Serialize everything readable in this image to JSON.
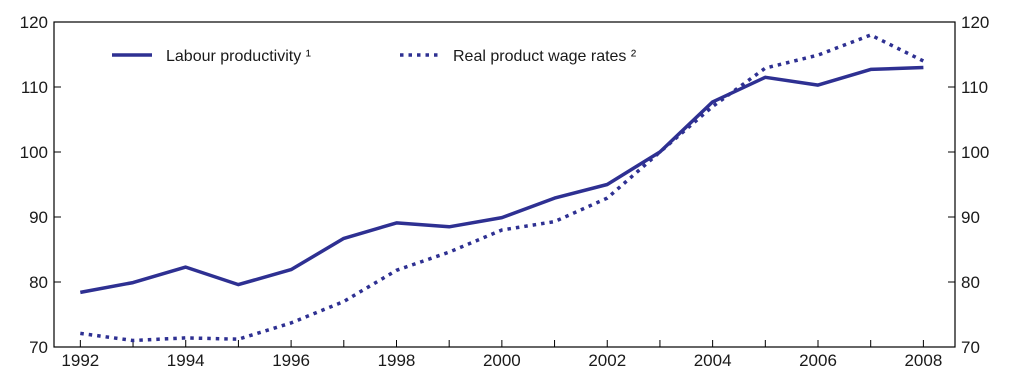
{
  "chart_data": {
    "type": "line",
    "x": [
      1992,
      1993,
      1994,
      1995,
      1996,
      1997,
      1998,
      1999,
      2000,
      2001,
      2002,
      2003,
      2004,
      2005,
      2006,
      2007,
      2008
    ],
    "x_ticks": [
      "1992",
      "1994",
      "1996",
      "1998",
      "2000",
      "2002",
      "2004",
      "2006",
      "2008"
    ],
    "y_ticks": [
      "70",
      "80",
      "90",
      "100",
      "110",
      "120"
    ],
    "ylim": [
      70,
      120
    ],
    "xlim": [
      1991.5,
      2008.6
    ],
    "grid": false,
    "legend_position": "top-left",
    "series": [
      {
        "name": "Labour productivity ¹",
        "style": "solid",
        "color": "#2e3092",
        "values": [
          78.4,
          79.9,
          82.3,
          79.6,
          81.9,
          86.7,
          89.1,
          88.5,
          89.9,
          92.9,
          95.0,
          100.0,
          107.7,
          111.5,
          110.3,
          112.7,
          113.0
        ]
      },
      {
        "name": "Real product wage rates ²",
        "style": "dotted",
        "color": "#2e3092",
        "values": [
          72.1,
          71.0,
          71.4,
          71.2,
          73.7,
          77.0,
          81.8,
          84.6,
          88.0,
          89.3,
          92.9,
          100.0,
          107.0,
          112.9,
          114.9,
          118.0,
          114.0
        ]
      }
    ]
  }
}
